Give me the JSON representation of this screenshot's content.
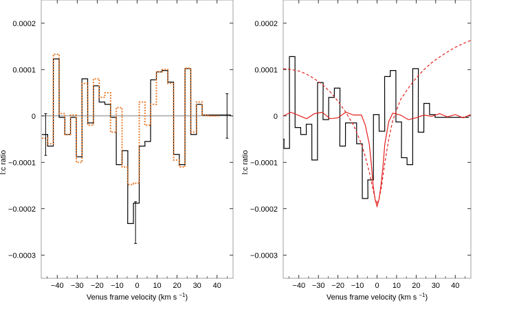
{
  "chart_data": [
    {
      "type": "line",
      "panel": "left",
      "xlabel": "Venus frame velocity (km s",
      "xlabel_sup": "−1",
      "xlabel_close": ")",
      "ylabel": "l:c ratio",
      "xlim": [
        -48,
        48
      ],
      "ylim": [
        -0.00035,
        0.00025
      ],
      "xticks": [
        -40,
        -30,
        -20,
        -10,
        0,
        10,
        20,
        30,
        40
      ],
      "xtick_labels": [
        "−40",
        "−30",
        "−20",
        "−10",
        "0",
        "10",
        "20",
        "30",
        "40"
      ],
      "yticks": [
        -0.0003,
        -0.0002,
        -0.0001,
        0,
        0.0001,
        0.0002
      ],
      "ytick_labels": [
        "−0.0003",
        "−0.0002",
        "−0.0001",
        "0",
        "0.0001",
        "0.0002"
      ],
      "grid": false,
      "zero_line": true,
      "series": [
        {
          "style": "step-solid",
          "color": "#000000",
          "x": [
            -46.2,
            -43.4,
            -40.5,
            -37.6,
            -34.8,
            -31.9,
            -29.0,
            -26.2,
            -23.3,
            -20.4,
            -17.6,
            -14.7,
            -11.9,
            -9.0,
            -6.1,
            -3.3,
            -0.4,
            2.5,
            5.3,
            8.2,
            11.1,
            13.9,
            16.8,
            19.7,
            22.5,
            25.4,
            28.3,
            31.1,
            34.0,
            36.9,
            39.7,
            42.6,
            45.5
          ],
          "values": [
            -4e-05,
            -6.5e-05,
            0.000123,
            -3e-06,
            -4e-05,
            -3e-06,
            -8.8e-05,
            8e-05,
            -1.5e-05,
            6.5e-05,
            3e-05,
            2.5e-05,
            -3e-06,
            -0.000105,
            -7.5e-05,
            -0.000232,
            -0.000188,
            -6.5e-05,
            -5.5e-05,
            7.8e-05,
            9.5e-05,
            9.8e-05,
            7.3e-05,
            -8.3e-05,
            -0.000105,
            0.000102,
            -4e-05,
            2.5e-05,
            2e-06,
            2e-06,
            2e-06,
            2e-06,
            2e-06
          ]
        },
        {
          "style": "step-dotted",
          "color": "#e8792a",
          "x": [
            -46.2,
            -43.4,
            -40.5,
            -37.6,
            -34.8,
            -31.9,
            -29.0,
            -26.2,
            -23.3,
            -20.4,
            -17.6,
            -14.7,
            -11.9,
            -9.0,
            -6.1,
            -3.3,
            -0.4,
            2.5,
            5.3,
            8.2,
            11.1,
            13.9,
            16.8,
            19.7,
            22.5,
            25.4,
            28.3,
            31.1,
            34.0,
            36.9,
            39.7
          ],
          "values": [
            -4.8e-05,
            -6e-05,
            0.000133,
            5e-06,
            -4e-05,
            2e-06,
            -0.0001,
            7e-05,
            -2e-05,
            8e-05,
            4e-05,
            5e-05,
            -3.5e-05,
            1.8e-05,
            -0.00011,
            -0.000148,
            -0.000145,
            3e-05,
            -2e-05,
            2.5e-05,
            9.5e-05,
            0.0001,
            7e-05,
            -9.5e-05,
            -0.00011,
            0.000103,
            -3.5e-05,
            3e-05,
            2e-06,
            0.0,
            0.0
          ]
        }
      ],
      "error_bars": [
        {
          "x": -45.8,
          "y": -4e-05,
          "err": 4.5e-05
        },
        {
          "x": -0.8,
          "y": -0.00023,
          "err": 4.5e-05
        },
        {
          "x": 45.0,
          "y": 0.0,
          "err": 4.8e-05
        }
      ]
    },
    {
      "type": "line",
      "panel": "right",
      "xlabel": "Venus frame velocity (km s",
      "xlabel_sup": "−1",
      "xlabel_close": ")",
      "ylabel": "l:c ratio",
      "xlim": [
        -48,
        48
      ],
      "ylim": [
        -0.00035,
        0.00025
      ],
      "xticks": [
        -40,
        -30,
        -20,
        -10,
        0,
        10,
        20,
        30,
        40
      ],
      "xtick_labels": [
        "−40",
        "−30",
        "−20",
        "−10",
        "0",
        "10",
        "20",
        "30",
        "40"
      ],
      "yticks": [
        -0.0003,
        -0.0002,
        -0.0001,
        0,
        0.0001,
        0.0002
      ],
      "ytick_labels": [
        "−0.0003",
        "−0.0002",
        "−0.0001",
        "0",
        "0.0001",
        "0.0002"
      ],
      "grid": false,
      "zero_line": false,
      "series": [
        {
          "style": "step-solid",
          "color": "#000000",
          "x": [
            -49.0,
            -46.2,
            -43.4,
            -40.5,
            -37.6,
            -34.8,
            -31.9,
            -29.0,
            -26.2,
            -23.3,
            -20.4,
            -17.6,
            -14.7,
            -11.9,
            -9.0,
            -6.1,
            -3.3,
            -0.4,
            2.5,
            5.3,
            8.2,
            11.1,
            13.9,
            16.8,
            19.7,
            22.5,
            25.4,
            28.3,
            31.1,
            34.0,
            36.9,
            39.7,
            42.6,
            45.5
          ],
          "values": [
            -5e-05,
            -7e-05,
            0.000128,
            -2.5e-05,
            -4e-05,
            -1.8e-05,
            -9.5e-05,
            7.2e-05,
            -8e-06,
            4e-05,
            6e-05,
            -6.5e-05,
            -1.5e-05,
            -1.5e-05,
            -6e-05,
            -0.000178,
            -0.000138,
            3e-06,
            -3.3e-05,
            8.5e-05,
            9.8e-05,
            -1.3e-05,
            -9e-05,
            -0.000105,
            0.000102,
            -3.5e-05,
            2.7e-05,
            3e-06,
            -3e-06,
            -3e-06,
            -3e-06,
            -3e-06,
            -3e-06,
            -3e-06
          ]
        },
        {
          "style": "line-solid",
          "color": "#e0201e",
          "x": [
            -48,
            -44,
            -40,
            -36,
            -32,
            -28,
            -24,
            -20,
            -16,
            -12,
            -8,
            -6,
            -4,
            -3,
            -2,
            -1,
            0,
            1,
            2,
            3,
            4,
            6,
            8,
            12,
            16,
            20,
            24,
            28,
            32,
            36,
            40,
            44,
            48
          ],
          "values": [
            0.0,
            8e-06,
            1e-06,
            -6e-06,
            5e-06,
            8e-06,
            -6e-06,
            -4e-06,
            8e-06,
            2e-06,
            2e-06,
            -2e-05,
            -6e-05,
            -0.0001,
            -0.00015,
            -0.00018,
            -0.000195,
            -0.00018,
            -0.00015,
            -0.00011,
            -6e-05,
            -1.2e-05,
            6e-06,
            2e-06,
            -8e-06,
            -4e-06,
            2e-06,
            -1e-06,
            5e-06,
            -2e-06,
            3e-06,
            -4e-06,
            3e-06
          ]
        },
        {
          "style": "line-dashed",
          "color": "#e0201e",
          "x": [
            -48,
            -44,
            -40,
            -36,
            -32,
            -28,
            -24,
            -20,
            -16,
            -12,
            -8,
            -6,
            -4,
            -3,
            -2,
            -1,
            0,
            1,
            2,
            3,
            4,
            6,
            8,
            12,
            16,
            20,
            24,
            28,
            32,
            36,
            40,
            44,
            48
          ],
          "values": [
            0.000102,
            0.0001,
            9.7e-05,
            9e-05,
            8e-05,
            6.8e-05,
            5.2e-05,
            3.2e-05,
            8e-06,
            -2e-05,
            -6e-05,
            -8.8e-05,
            -0.00012,
            -0.00014,
            -0.00016,
            -0.000178,
            -0.00019,
            -0.000178,
            -0.00016,
            -0.00013,
            -0.0001,
            -5e-05,
            -1e-05,
            3.5e-05,
            6e-05,
            8.2e-05,
            0.0001,
            0.000115,
            0.000127,
            0.000138,
            0.000148,
            0.000156,
            0.000163
          ]
        }
      ]
    }
  ]
}
